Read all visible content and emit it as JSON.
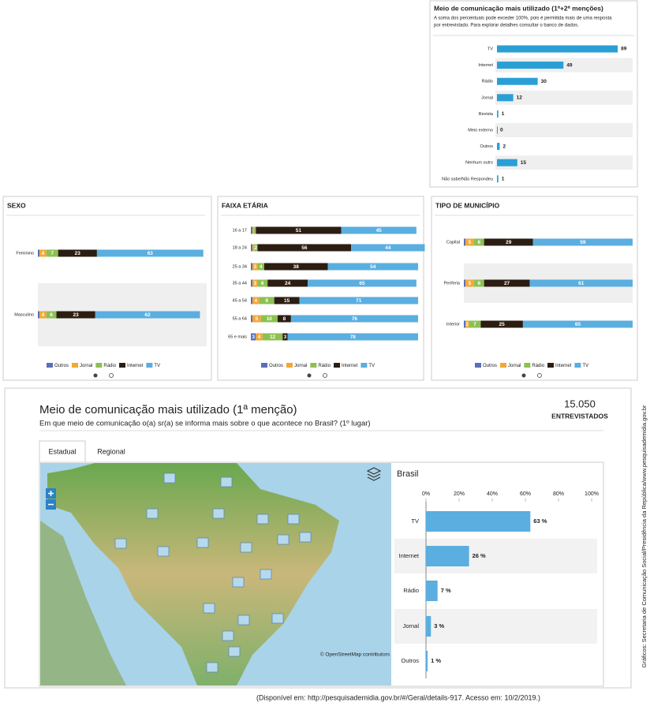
{
  "top_panel": {
    "title": "Meio de comunicação mais utilizado (1ª+2ª menções)",
    "subtitle": [
      "A soma dos percentuais pode exceder 100%, pois é permitida mais de uma resposta",
      "por entrevistado. Para explorar detalhes consultar o banco de dados."
    ],
    "categories": [
      "TV",
      "Internet",
      "Rádio",
      "Jornal",
      "Revista",
      "Meio externo",
      "Outros",
      "Nenhum outro",
      "Não sabe/Não Respondeu"
    ],
    "values": [
      89,
      49,
      30,
      12,
      1,
      0,
      2,
      15,
      1
    ],
    "color": "#2a9fd6"
  },
  "breakdowns": {
    "series_names": [
      "Outros",
      "Jornal",
      "Rádio",
      "Internet",
      "TV"
    ],
    "colors": [
      "#5b6fb8",
      "#f5a733",
      "#8cc152",
      "#2b1d12",
      "#5aaee0"
    ],
    "panels": [
      {
        "title": "SEXO",
        "rows": [
          {
            "label": "Feminino",
            "values": [
              1,
              4,
              7,
              23,
              63
            ]
          },
          {
            "label": "Masculino",
            "values": [
              1,
              4,
              6,
              23,
              62
            ]
          }
        ]
      },
      {
        "title": "FAIXA ETÁRIA",
        "rows": [
          {
            "label": "16 a 17",
            "values": [
              1,
              1,
              1,
              51,
              45
            ]
          },
          {
            "label": "18 a 24",
            "values": [
              1,
              1,
              2,
              56,
              44
            ]
          },
          {
            "label": "25 a 34",
            "values": [
              1,
              3,
              4,
              38,
              54
            ]
          },
          {
            "label": "35 a 44",
            "values": [
              1,
              3,
              6,
              24,
              65
            ]
          },
          {
            "label": "45 a 54",
            "values": [
              1,
              4,
              9,
              15,
              71
            ]
          },
          {
            "label": "55 a 64",
            "values": [
              1,
              5,
              10,
              8,
              76
            ]
          },
          {
            "label": "65 e mais",
            "values": [
              3,
              4,
              12,
              3,
              78
            ]
          }
        ]
      },
      {
        "title": "TIPO DE MUNICÍPIO",
        "rows": [
          {
            "label": "Capital",
            "values": [
              1,
              5,
              6,
              29,
              59
            ]
          },
          {
            "label": "Periferia",
            "values": [
              1,
              5,
              6,
              27,
              61
            ]
          },
          {
            "label": "Interior",
            "values": [
              1,
              2,
              7,
              25,
              65
            ]
          }
        ]
      }
    ]
  },
  "bottom": {
    "title": "Meio de comunicação mais utilizado (1ª menção)",
    "subtitle": "Em que meio de comunicação o(a) sr(a) se informa mais sobre o que acontece no Brasil? (1º lugar)",
    "count": "15.050",
    "count_label": "ENTREVISTADOS",
    "tabs": [
      "Estadual",
      "Regional"
    ],
    "map_attribution": "© OpenStreetMap contributors",
    "chart": {
      "title": "Brasil",
      "xlim": [
        0,
        100
      ],
      "xticks": [
        {
          "value": 0,
          "label": "0%"
        },
        {
          "value": 20,
          "label": "20%"
        },
        {
          "value": 40,
          "label": "40%"
        },
        {
          "value": 60,
          "label": "60%"
        },
        {
          "value": 80,
          "label": "80%"
        },
        {
          "value": 100,
          "label": "100%"
        }
      ],
      "categories": [
        "TV",
        "Internet",
        "Rádio",
        "Jornal",
        "Outros"
      ],
      "values": [
        63,
        26,
        7,
        3,
        1
      ],
      "value_labels": [
        "63 %",
        "26 %",
        "7 %",
        "3 %",
        "1 %"
      ],
      "color": "#5aaee0"
    }
  },
  "side_note": "Gráficos: Secretaria de Comunicação Social/Presidência da República/www.pesquisademidia.gov.br",
  "footer": "(Disponível em: http://pesquisademidia.gov.br/#/Geral/details-917. Acesso em: 10/2/2019.)"
}
